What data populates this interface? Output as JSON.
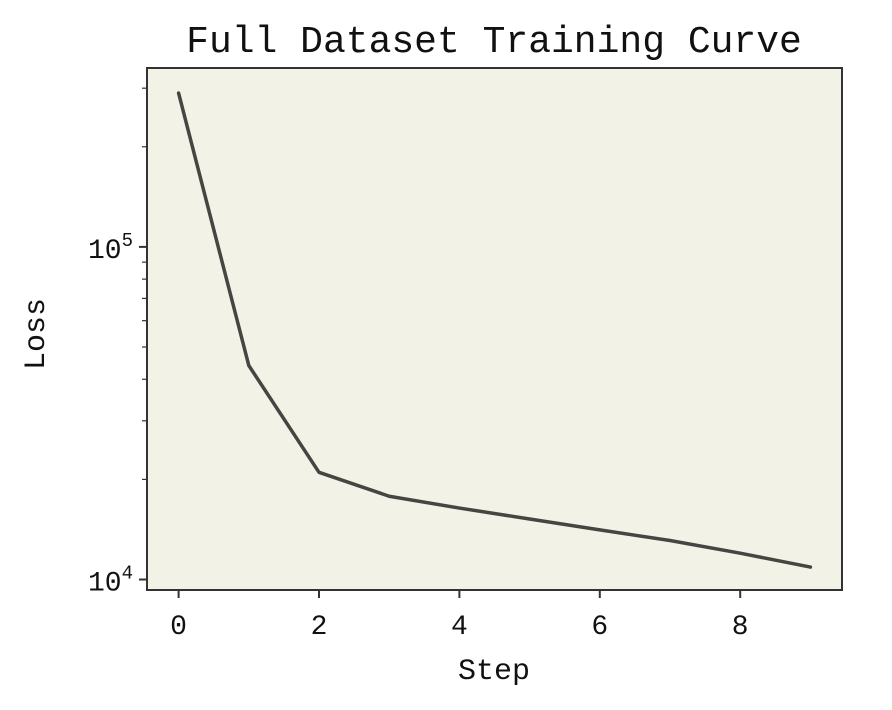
{
  "chart_data": {
    "type": "line",
    "title": "Full Dataset Training Curve",
    "xlabel": "Step",
    "ylabel": "Loss",
    "x": [
      0,
      1,
      2,
      3,
      4,
      5,
      6,
      7,
      8,
      9
    ],
    "series": [
      {
        "values": [
          290000,
          44000,
          21000,
          17800,
          16400,
          15200,
          14100,
          13100,
          12000,
          10900
        ]
      }
    ],
    "x_ticks": [
      0,
      2,
      4,
      6,
      8
    ],
    "y_ticks": [
      {
        "value": 10000,
        "base": "10",
        "exp": "4"
      },
      {
        "value": 100000,
        "base": "10",
        "exp": "5"
      }
    ],
    "xlim": [
      -0.45,
      9.45
    ],
    "ylim": [
      9300,
      345000
    ],
    "yscale": "log",
    "grid": false,
    "legend": "none",
    "colors": {
      "line": "#474542",
      "plot_background": "#f2f2e6",
      "frame": "#333333",
      "text": "#111111"
    }
  }
}
